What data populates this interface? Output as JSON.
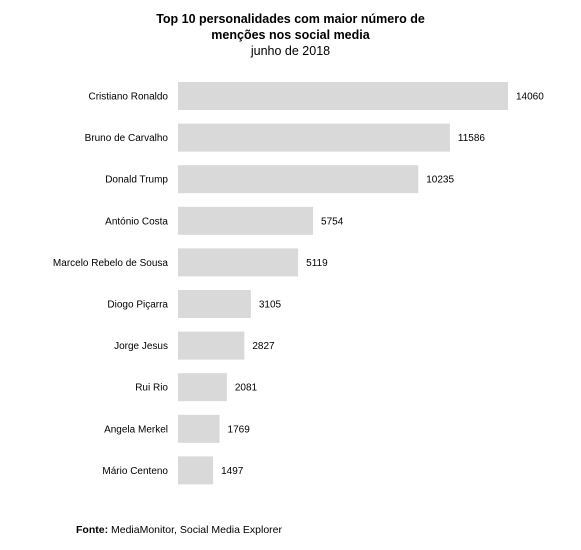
{
  "chart_data": {
    "type": "bar",
    "orientation": "horizontal",
    "title": "Top 10 personalidades com maior número de menções nos social media",
    "subtitle": "junho de 2018",
    "categories": [
      "Cristiano Ronaldo",
      "Bruno de Carvalho",
      "Donald Trump",
      "António Costa",
      "Marcelo Rebelo de Sousa",
      "Diogo Piçarra",
      "Jorge Jesus",
      "Rui Rio",
      "Angela Merkel",
      "Mário Centeno"
    ],
    "values": [
      14060,
      11586,
      10235,
      5754,
      5119,
      3105,
      2827,
      2081,
      1769,
      1497
    ],
    "xlim": [
      0,
      14060
    ],
    "bar_color": "#d9d9d9",
    "grid": false,
    "legend": "none",
    "data_labels": true
  },
  "source": {
    "label": "Fonte:",
    "text": " MediaMonitor, Social Media Explorer"
  }
}
